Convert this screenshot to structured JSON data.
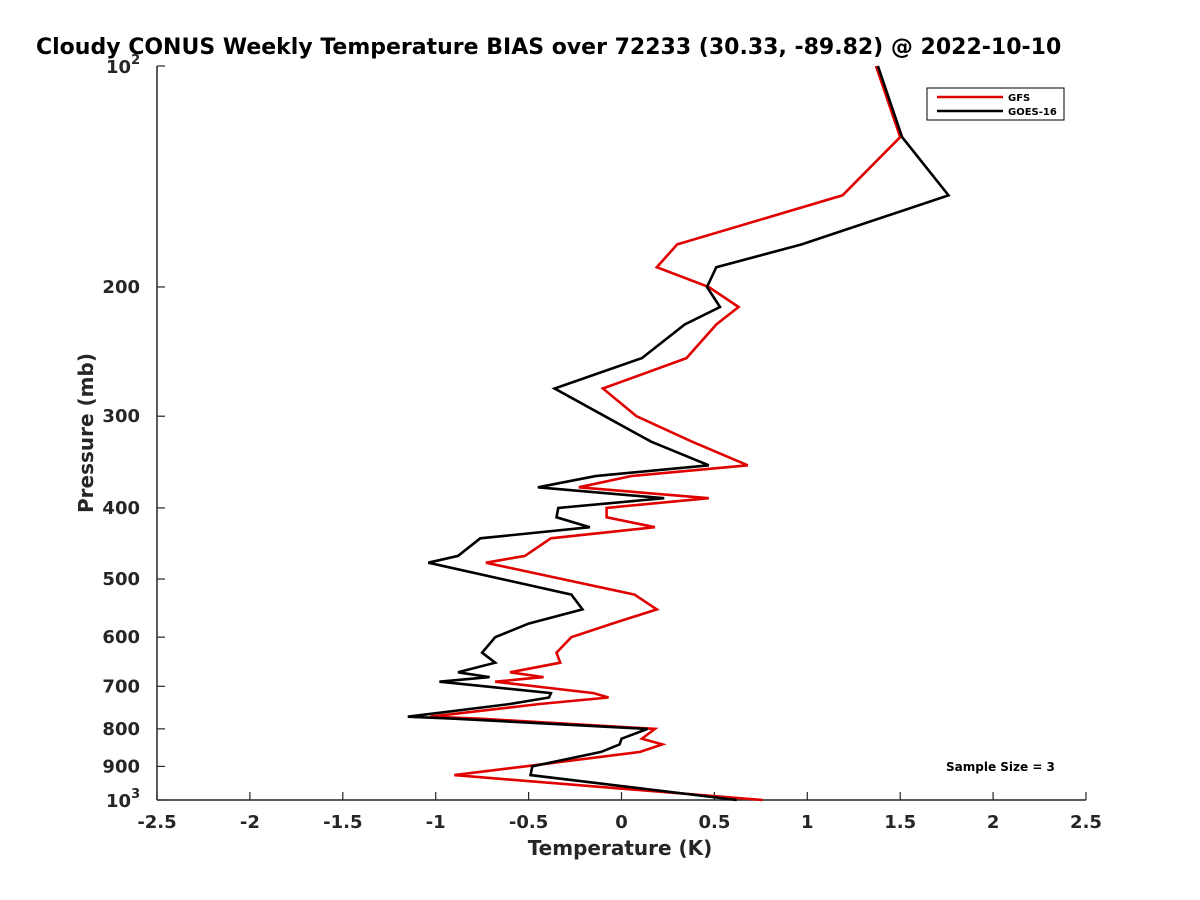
{
  "chart_data": {
    "type": "line",
    "title": "Cloudy CONUS Weekly Temperature BIAS over 72233 (30.33, -89.82) @ 2022-10-10",
    "xlabel": "Temperature (K)",
    "ylabel": "Pressure (mb)",
    "xlim": [
      -2.5,
      2.5
    ],
    "ylim": [
      100,
      1000
    ],
    "yscale": "log",
    "y_reversed": true,
    "x_ticks": [
      "-2.5",
      "-2",
      "-1.5",
      "-1",
      "-0.5",
      "0",
      "0.5",
      "1",
      "1.5",
      "2",
      "2.5"
    ],
    "y_ticks": [
      {
        "value": 100,
        "base": "10",
        "exp": "2"
      },
      {
        "value": 200,
        "label": "200"
      },
      {
        "value": 300,
        "label": "300"
      },
      {
        "value": 400,
        "label": "400"
      },
      {
        "value": 500,
        "label": "500"
      },
      {
        "value": 600,
        "label": "600"
      },
      {
        "value": 700,
        "label": "700"
      },
      {
        "value": 800,
        "label": "800"
      },
      {
        "value": 900,
        "label": "900"
      },
      {
        "value": 1000,
        "base": "10",
        "exp": "3"
      }
    ],
    "legend_position": "top-right",
    "annotation": "Sample Size = 3",
    "series": [
      {
        "name": "GFS",
        "color": "#e00000",
        "points": [
          [
            1.37,
            100
          ],
          [
            1.5,
            125
          ],
          [
            1.19,
            150
          ],
          [
            0.3,
            175
          ],
          [
            0.19,
            188
          ],
          [
            0.47,
            200
          ],
          [
            0.63,
            213
          ],
          [
            0.51,
            225
          ],
          [
            0.35,
            250
          ],
          [
            -0.1,
            275
          ],
          [
            0.08,
            300
          ],
          [
            0.38,
            325
          ],
          [
            0.68,
            350
          ],
          [
            0.05,
            362
          ],
          [
            -0.23,
            375
          ],
          [
            0.47,
            388
          ],
          [
            -0.08,
            400
          ],
          [
            -0.08,
            412
          ],
          [
            0.18,
            425
          ],
          [
            -0.38,
            440
          ],
          [
            -0.52,
            465
          ],
          [
            -0.73,
            475
          ],
          [
            0.07,
            525
          ],
          [
            0.19,
            550
          ],
          [
            -0.05,
            575
          ],
          [
            -0.27,
            600
          ],
          [
            -0.35,
            630
          ],
          [
            -0.33,
            650
          ],
          [
            -0.6,
            670
          ],
          [
            -0.42,
            680
          ],
          [
            -0.68,
            690
          ],
          [
            -0.15,
            715
          ],
          [
            -0.07,
            725
          ],
          [
            -0.44,
            740
          ],
          [
            -1.03,
            770
          ],
          [
            -0.76,
            775
          ],
          [
            0.18,
            800
          ],
          [
            0.11,
            825
          ],
          [
            0.22,
            840
          ],
          [
            0.1,
            860
          ],
          [
            -0.52,
            900
          ],
          [
            -0.9,
            925
          ],
          [
            0.76,
            1000
          ]
        ]
      },
      {
        "name": "GOES-16",
        "color": "#000000",
        "points": [
          [
            1.38,
            100
          ],
          [
            1.51,
            125
          ],
          [
            1.76,
            150
          ],
          [
            0.97,
            175
          ],
          [
            0.51,
            188
          ],
          [
            0.46,
            200
          ],
          [
            0.53,
            213
          ],
          [
            0.34,
            225
          ],
          [
            0.11,
            250
          ],
          [
            -0.36,
            275
          ],
          [
            -0.09,
            300
          ],
          [
            0.16,
            325
          ],
          [
            0.47,
            350
          ],
          [
            -0.14,
            362
          ],
          [
            -0.45,
            375
          ],
          [
            0.23,
            388
          ],
          [
            -0.34,
            400
          ],
          [
            -0.35,
            412
          ],
          [
            -0.17,
            425
          ],
          [
            -0.76,
            440
          ],
          [
            -0.88,
            465
          ],
          [
            -1.04,
            475
          ],
          [
            -0.27,
            525
          ],
          [
            -0.21,
            550
          ],
          [
            -0.5,
            575
          ],
          [
            -0.68,
            600
          ],
          [
            -0.75,
            630
          ],
          [
            -0.68,
            650
          ],
          [
            -0.88,
            670
          ],
          [
            -0.71,
            680
          ],
          [
            -0.98,
            690
          ],
          [
            -0.38,
            715
          ],
          [
            -0.39,
            725
          ],
          [
            -0.6,
            740
          ],
          [
            -1.15,
            770
          ],
          [
            -0.9,
            775
          ],
          [
            0.14,
            800
          ],
          [
            0.0,
            825
          ],
          [
            -0.01,
            840
          ],
          [
            -0.11,
            860
          ],
          [
            -0.48,
            900
          ],
          [
            -0.49,
            925
          ],
          [
            0.62,
            1000
          ]
        ]
      }
    ]
  }
}
